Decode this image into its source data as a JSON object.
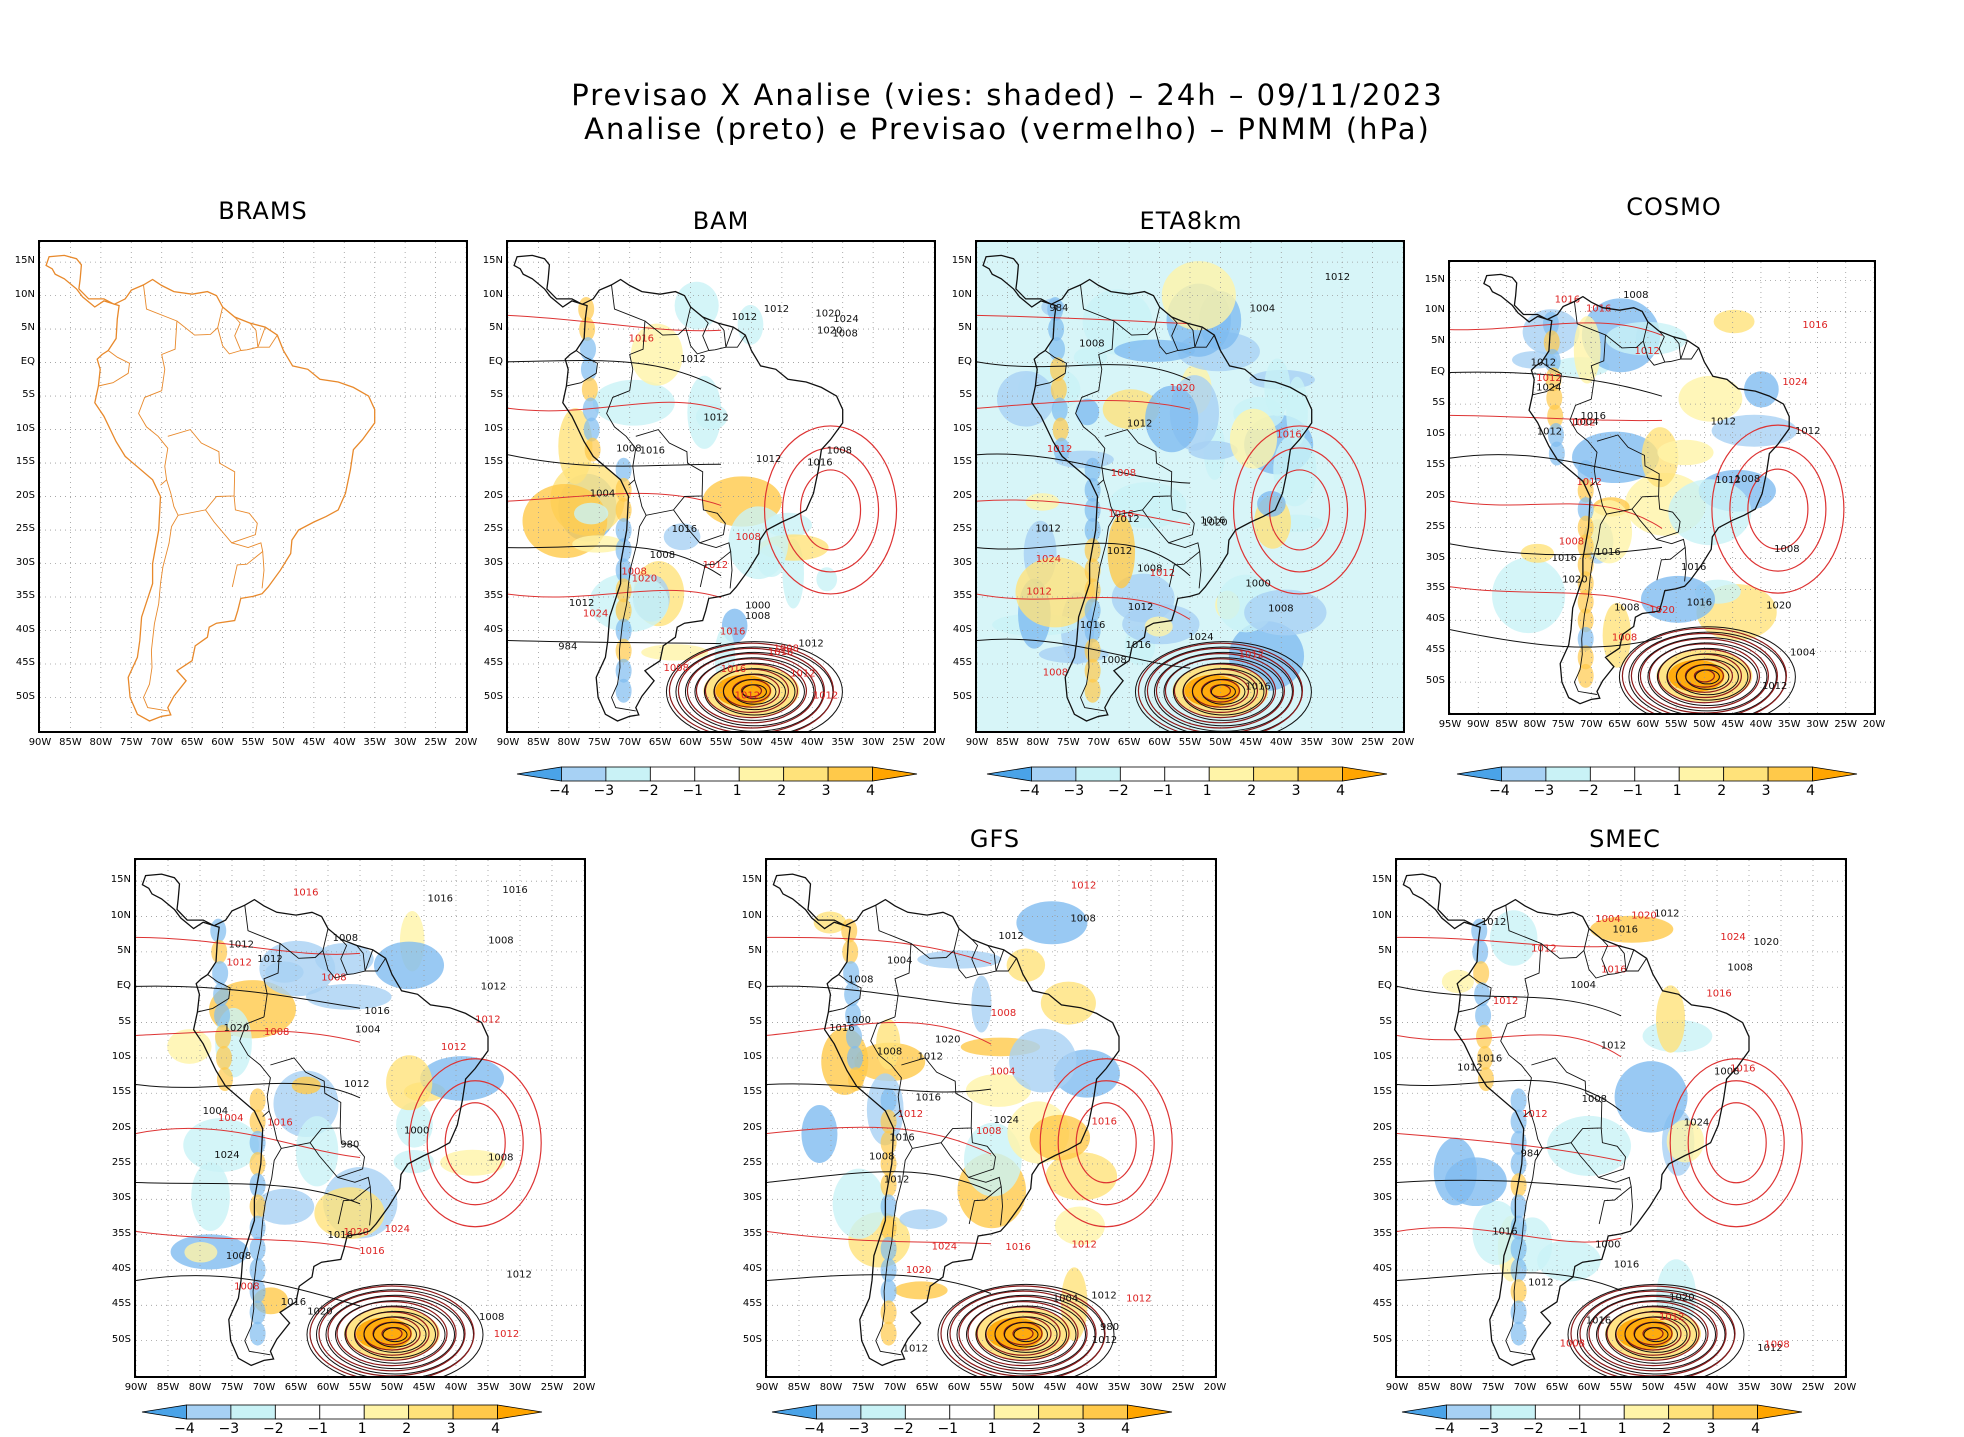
{
  "chart_data": {
    "type": "heatmap",
    "title_line1": "Previsao X Analise (vies: shaded) – 24h – 09/11/2023",
    "title_line2": "Analise (preto) e Previsao (vermelho) – PNMM (hPa)",
    "colorbar": {
      "labels": [
        "−4",
        "−3",
        "−2",
        "−1",
        "1",
        "2",
        "3",
        "4"
      ],
      "colors": [
        "#4aa3e8",
        "#7fbcf0",
        "#a7d1f4",
        "#c9f2f6",
        "#ffffff",
        "#ffffff",
        "#fff4a8",
        "#ffe27a",
        "#ffc94a",
        "#ffa500"
      ]
    },
    "x_ticks": [
      "90W",
      "85W",
      "80W",
      "75W",
      "70W",
      "65W",
      "60W",
      "55W",
      "50W",
      "45W",
      "40W",
      "35W",
      "30W",
      "25W",
      "20W"
    ],
    "x_ticks_cosmo": [
      "95W",
      "90W",
      "85W",
      "80W",
      "75W",
      "70W",
      "65W",
      "60W",
      "55W",
      "50W",
      "45W",
      "40W",
      "35W",
      "30W",
      "25W",
      "20W"
    ],
    "y_ticks": [
      "15N",
      "10N",
      "5N",
      "EQ",
      "5S",
      "10S",
      "15S",
      "20S",
      "25S",
      "30S",
      "35S",
      "40S",
      "45S",
      "50S"
    ],
    "panels": [
      {
        "name": "BRAMS",
        "has_data": false,
        "bias_coverage": "none",
        "analysis_isobars": [],
        "forecast_isobars": []
      },
      {
        "name": "BAM",
        "has_data": true,
        "bias_coverage": "moderate",
        "analysis_isobars": [
          "1016",
          "1008",
          "1012",
          "1008",
          "1012",
          "1016",
          "1008",
          "1012",
          "1008",
          "1012",
          "1012",
          "1020",
          "1024",
          "1020",
          "1012",
          "1008",
          "1004",
          "1000",
          "984",
          "1012",
          "1016"
        ],
        "forecast_isobars": [
          "1016",
          "1008",
          "1008",
          "1012",
          "1012",
          "1016",
          "1020",
          "1012",
          "1008",
          "1024",
          "1016",
          "1008",
          "1016",
          "1012"
        ]
      },
      {
        "name": "ETA8km",
        "has_data": true,
        "bias_coverage": "wide",
        "analysis_isobars": [
          "1012",
          "1016",
          "1008",
          "1012",
          "1012",
          "1016",
          "1008",
          "1012",
          "1016",
          "1008",
          "1012",
          "1020",
          "1024",
          "1016",
          "1012",
          "1008",
          "1004",
          "1000",
          "984"
        ],
        "forecast_isobars": [
          "1012",
          "1008",
          "1012",
          "1012",
          "1016",
          "1020",
          "1008",
          "1024",
          "1016",
          "1012"
        ]
      },
      {
        "name": "COSMO",
        "has_data": true,
        "bias_coverage": "moderate",
        "analysis_isobars": [
          "1008",
          "1012",
          "1012",
          "1012",
          "1016",
          "1008",
          "1012",
          "1016",
          "1004",
          "1008",
          "1012",
          "1016",
          "1020",
          "1016",
          "1020",
          "1024",
          "1012",
          "1008",
          "1004",
          "1016"
        ],
        "forecast_isobars": [
          "1012",
          "1012",
          "1016",
          "1008",
          "1012",
          "1016",
          "1020",
          "1024",
          "1012",
          "1008",
          "1016"
        ]
      },
      {
        "name": "",
        "has_data": true,
        "bias_coverage": "moderate",
        "analysis_isobars": [
          "1016",
          "1012",
          "1008",
          "1008",
          "1012",
          "1016",
          "1012",
          "1016",
          "1008",
          "1012",
          "1004",
          "1008",
          "1016",
          "1020",
          "1024",
          "1020",
          "1016",
          "1012",
          "1008",
          "1004",
          "1000",
          "980"
        ],
        "forecast_isobars": [
          "1016",
          "1012",
          "1008",
          "1008",
          "1012",
          "1016",
          "1020",
          "1016",
          "1012",
          "1024",
          "1008",
          "1004",
          "1012"
        ]
      },
      {
        "name": "GFS",
        "has_data": true,
        "bias_coverage": "moderate",
        "analysis_isobars": [
          "1016",
          "1008",
          "1012",
          "1012",
          "1008",
          "1012",
          "1016",
          "1012",
          "1004",
          "1008",
          "1012",
          "1016",
          "1020",
          "1024",
          "1012",
          "1008",
          "1004",
          "1000",
          "980"
        ],
        "forecast_isobars": [
          "1008",
          "1012",
          "1012",
          "1016",
          "1020",
          "1012",
          "1008",
          "1024",
          "1016",
          "1012",
          "1004"
        ]
      },
      {
        "name": "SMEC",
        "has_data": true,
        "bias_coverage": "light",
        "analysis_isobars": [
          "1016",
          "1012",
          "1008",
          "1012",
          "1012",
          "1016",
          "1012",
          "1016",
          "1008",
          "1012",
          "1016",
          "1020",
          "1024",
          "1020",
          "1016",
          "1012",
          "1008",
          "1004",
          "1000",
          "984"
        ],
        "forecast_isobars": [
          "1016",
          "1012",
          "1008",
          "1012",
          "1016",
          "1020",
          "1024",
          "1016",
          "1012",
          "1008",
          "1004",
          "1012"
        ]
      }
    ]
  }
}
